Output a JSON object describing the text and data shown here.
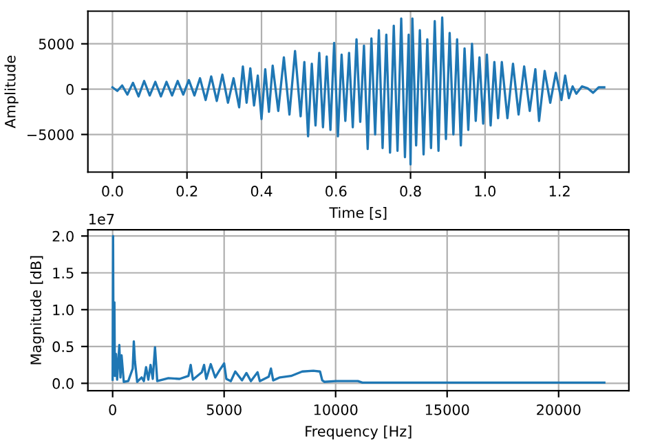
{
  "chart_data": [
    {
      "type": "line",
      "xlabel": "Time [s]",
      "ylabel": "Amplitude",
      "grid": true,
      "xlim": [
        -0.066,
        1.386
      ],
      "ylim": [
        -9150,
        8600
      ],
      "xticks": [
        {
          "value": 0,
          "label": "0.0"
        },
        0.2,
        0.4,
        0.6,
        0.8,
        {
          "value": 1,
          "label": "1.0"
        },
        1.2
      ],
      "yticks": [
        {
          "value": -5000,
          "label": "−5000"
        },
        0,
        5000
      ],
      "series": [
        {
          "color": "#1f77b4",
          "x": [
            0.0,
            0.013,
            0.026,
            0.04,
            0.055,
            0.07,
            0.085,
            0.1,
            0.115,
            0.13,
            0.145,
            0.16,
            0.175,
            0.19,
            0.205,
            0.22,
            0.235,
            0.25,
            0.265,
            0.28,
            0.295,
            0.31,
            0.325,
            0.34,
            0.35,
            0.36,
            0.37,
            0.38,
            0.39,
            0.4,
            0.41,
            0.42,
            0.43,
            0.445,
            0.46,
            0.475,
            0.49,
            0.505,
            0.515,
            0.525,
            0.535,
            0.545,
            0.555,
            0.565,
            0.575,
            0.585,
            0.595,
            0.605,
            0.615,
            0.625,
            0.635,
            0.645,
            0.655,
            0.665,
            0.675,
            0.685,
            0.695,
            0.705,
            0.715,
            0.725,
            0.735,
            0.745,
            0.755,
            0.765,
            0.775,
            0.785,
            0.795,
            0.8,
            0.805,
            0.815,
            0.825,
            0.835,
            0.845,
            0.855,
            0.865,
            0.875,
            0.885,
            0.895,
            0.905,
            0.915,
            0.925,
            0.935,
            0.945,
            0.955,
            0.965,
            0.975,
            0.985,
            0.995,
            1.005,
            1.015,
            1.025,
            1.035,
            1.045,
            1.06,
            1.075,
            1.09,
            1.105,
            1.12,
            1.135,
            1.145,
            1.16,
            1.175,
            1.19,
            1.205,
            1.215,
            1.225,
            1.235,
            1.245,
            1.26,
            1.275,
            1.29,
            1.305,
            1.32
          ],
          "values": [
            200,
            -200,
            400,
            -600,
            700,
            -800,
            900,
            -700,
            800,
            -800,
            800,
            -700,
            900,
            -600,
            1000,
            -700,
            1200,
            -1200,
            1400,
            -1300,
            1600,
            -1500,
            1200,
            -2000,
            2500,
            -1500,
            2300,
            -1800,
            1500,
            -3300,
            2200,
            -2500,
            2600,
            -2400,
            3500,
            -2800,
            4200,
            -3000,
            3000,
            -5200,
            2800,
            -4000,
            4000,
            -4200,
            3600,
            -4500,
            5100,
            -5200,
            3800,
            -3500,
            4000,
            -4200,
            5500,
            -3600,
            4800,
            -6600,
            5600,
            -5000,
            6500,
            -6500,
            6000,
            -7000,
            7000,
            -6800,
            7800,
            -7500,
            6000,
            -8300,
            7800,
            -6200,
            6500,
            -7200,
            5500,
            -6500,
            7500,
            -6800,
            7900,
            -5500,
            6200,
            -5000,
            5500,
            -6200,
            4500,
            -4500,
            5000,
            -3500,
            3500,
            -3800,
            3800,
            -4000,
            3000,
            -3200,
            3000,
            -3200,
            2800,
            -2800,
            2500,
            -2400,
            2200,
            -3500,
            2000,
            -1500,
            1800,
            -1200,
            1500,
            -1000,
            300,
            -500,
            300,
            100,
            -400,
            200,
            200
          ]
        }
      ]
    },
    {
      "type": "line",
      "xlabel": "Frequency [Hz]",
      "ylabel": "Magnitude [dB]",
      "grid": true,
      "annotations": [
        "1e7"
      ],
      "xlim": [
        -1110,
        23150
      ],
      "ylim": [
        -0.1,
        2.085
      ],
      "xticks": [
        0,
        5000,
        10000,
        15000,
        20000
      ],
      "yticks": [
        {
          "value": 0,
          "label": "0.0"
        },
        0.5,
        {
          "value": 1,
          "label": "1.0"
        },
        1.5,
        {
          "value": 2,
          "label": "2.0"
        }
      ],
      "series": [
        {
          "color": "#1f77b4",
          "x": [
            0,
            20,
            40,
            80,
            100,
            150,
            200,
            300,
            350,
            400,
            500,
            700,
            900,
            950,
            1000,
            1100,
            1300,
            1400,
            1500,
            1600,
            1700,
            1800,
            1900,
            2000,
            2500,
            3000,
            3400,
            3500,
            3600,
            4000,
            4100,
            4200,
            4400,
            4600,
            4800,
            5000,
            5100,
            5300,
            5500,
            5800,
            6000,
            6200,
            6500,
            6600,
            7000,
            7100,
            7200,
            7500,
            8000,
            8500,
            9000,
            9300,
            9400,
            9500,
            10000,
            10800,
            11000,
            11200,
            15000,
            22050
          ],
          "values": [
            0.05,
            2.0,
            0.3,
            1.1,
            0.1,
            0.4,
            0.05,
            0.52,
            0.08,
            0.38,
            0.02,
            0.03,
            0.2,
            0.57,
            0.3,
            0.02,
            0.08,
            0.03,
            0.22,
            0.05,
            0.25,
            0.06,
            0.49,
            0.03,
            0.07,
            0.06,
            0.1,
            0.25,
            0.05,
            0.15,
            0.25,
            0.06,
            0.26,
            0.08,
            0.18,
            0.27,
            0.06,
            0.03,
            0.16,
            0.04,
            0.14,
            0.03,
            0.15,
            0.03,
            0.09,
            0.2,
            0.04,
            0.08,
            0.1,
            0.16,
            0.17,
            0.16,
            0.04,
            0.02,
            0.03,
            0.03,
            0.03,
            0.01,
            0.01,
            0.01
          ]
        }
      ]
    }
  ]
}
